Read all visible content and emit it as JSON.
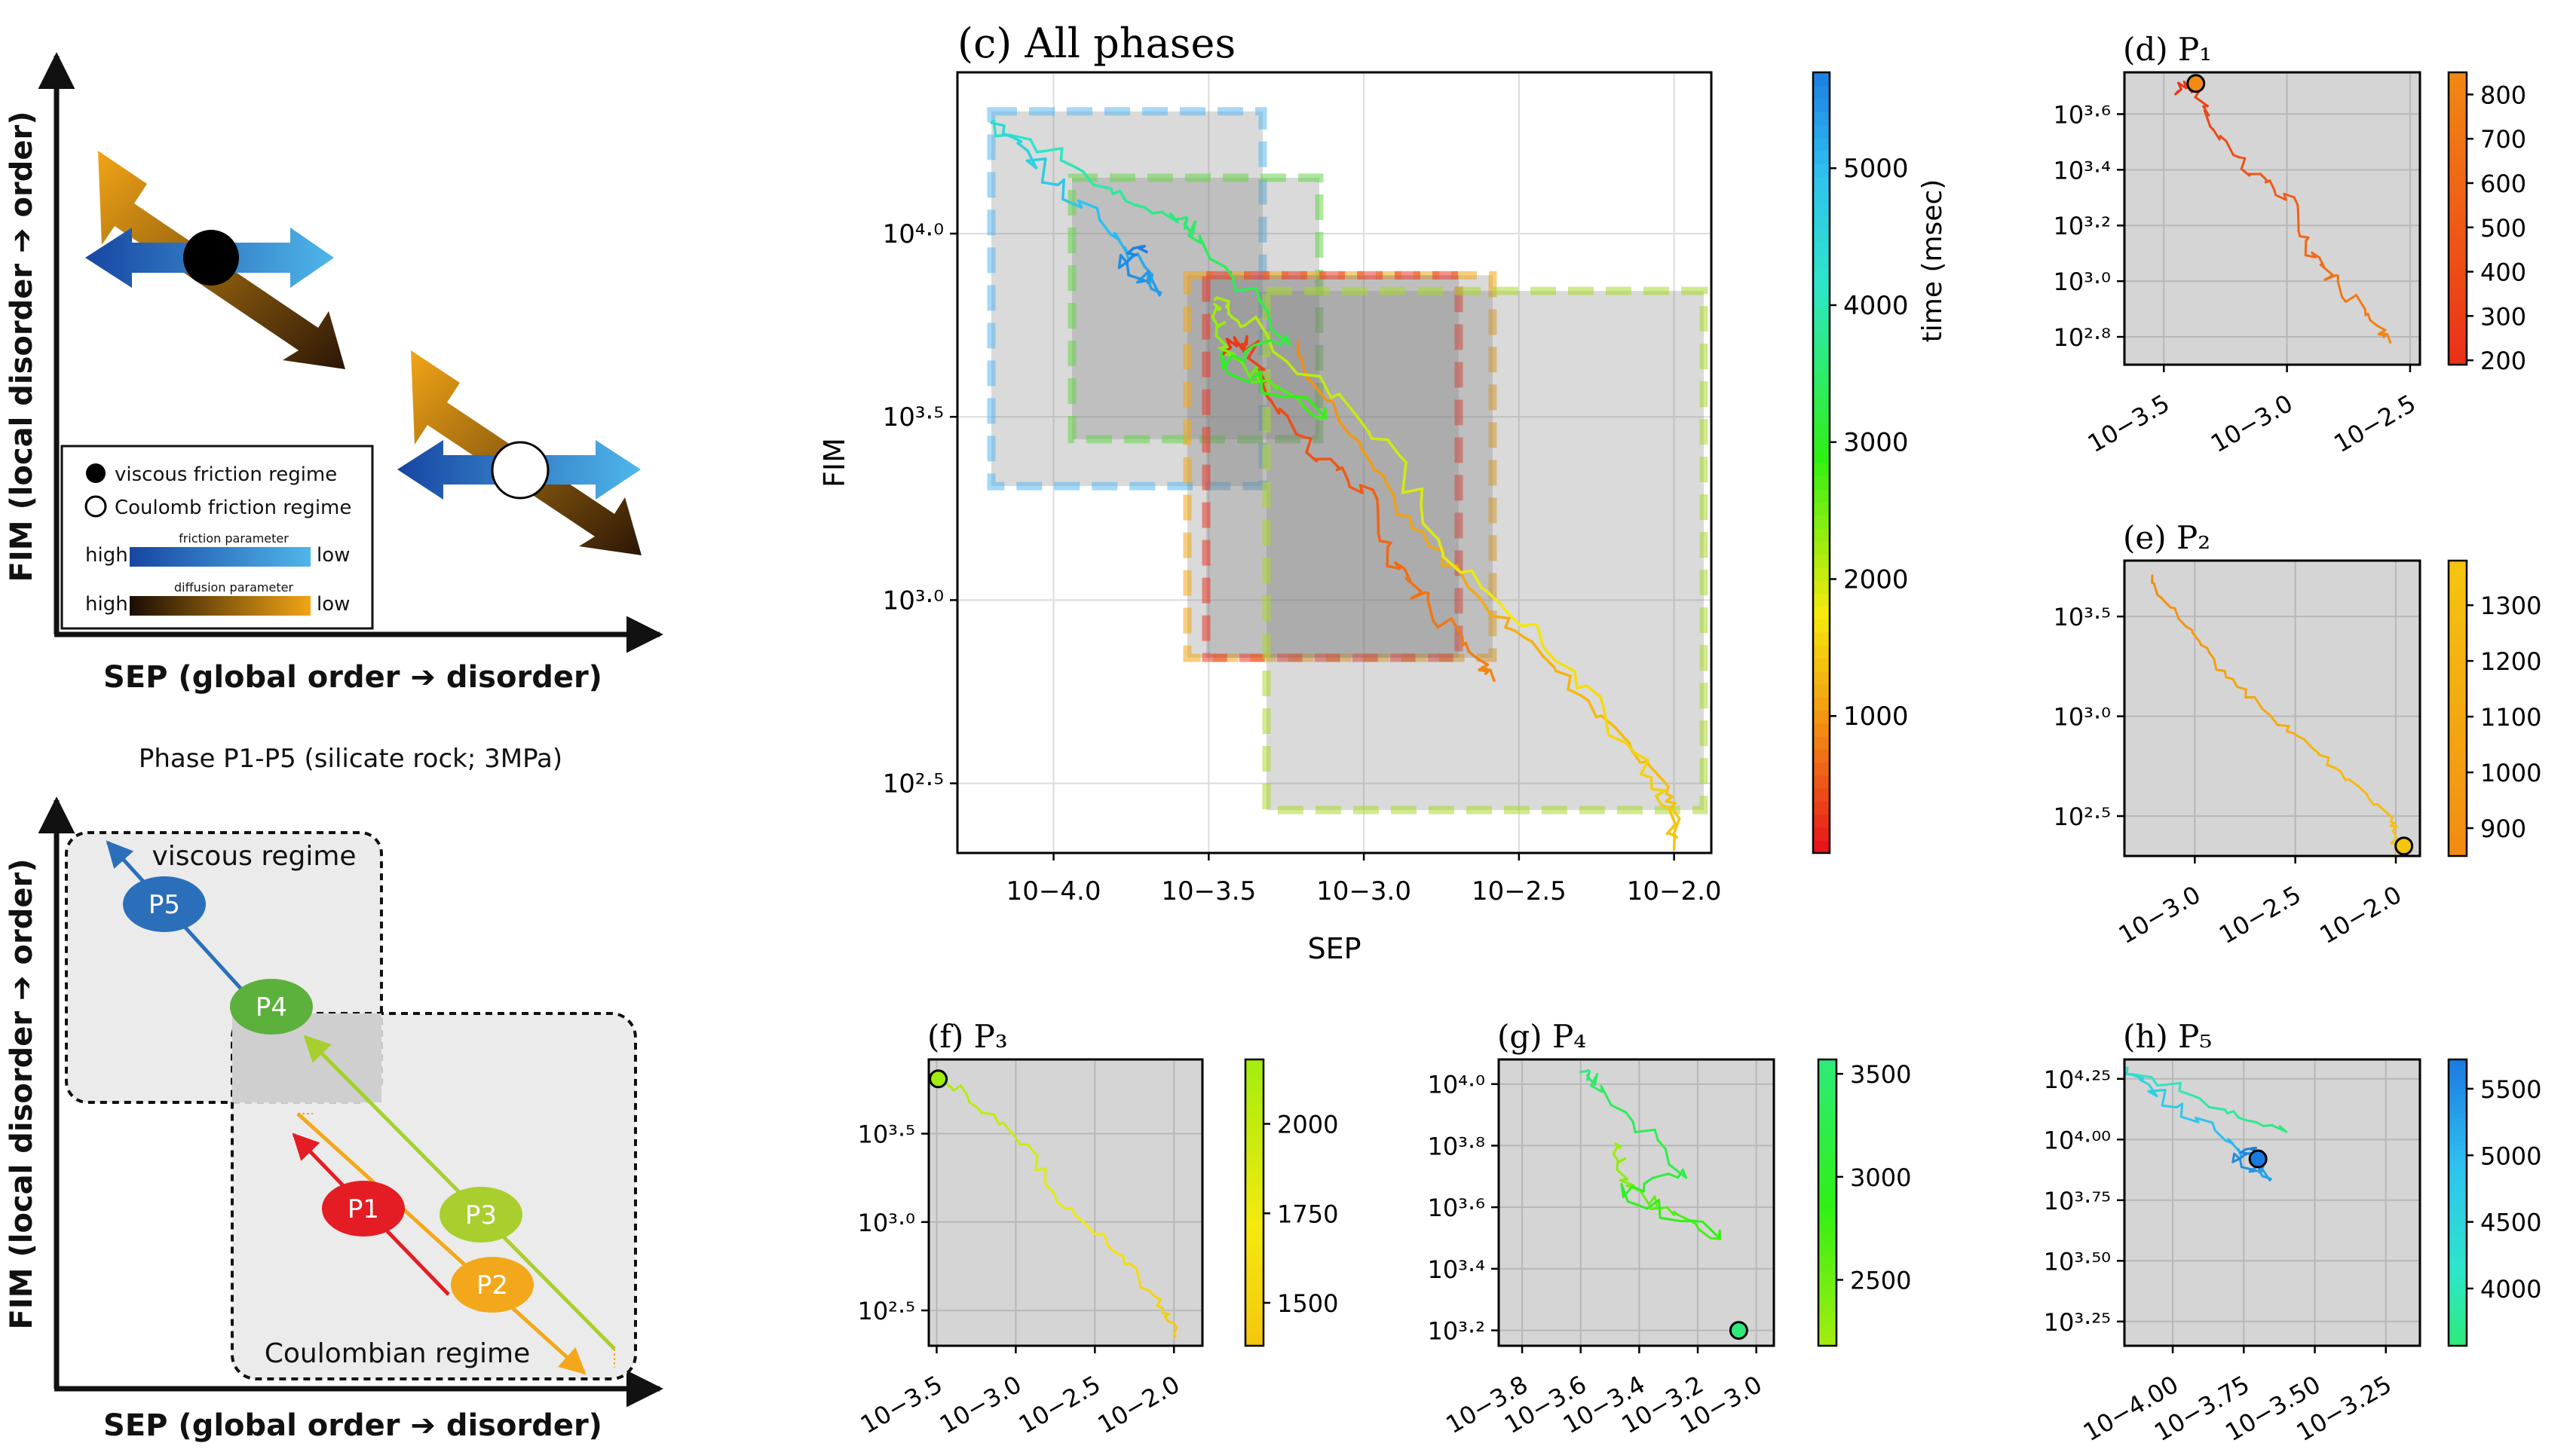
{
  "schematic": {
    "top": {
      "xlabel": "SEP (global order ➔ disorder)",
      "ylabel": "FIM (local disorder ➔ order)",
      "legend": {
        "viscous": "viscous friction regime",
        "coulomb": "Coulomb friction regime",
        "friction_high": "high",
        "friction_title": "friction parameter",
        "friction_low": "low",
        "diffusion_high": "high",
        "diffusion_title": "diffusion parameter",
        "diffusion_low": "low"
      },
      "colors": {
        "friction_dark": "#1746a2",
        "friction_light": "#4fb6ea",
        "diffusion_dark": "#2b1606",
        "diffusion_light": "#f2a516"
      }
    },
    "caption": "Phase P1-P5 (silicate rock; 3MPa)",
    "bottom": {
      "xlabel": "SEP (global order ➔ disorder)",
      "ylabel": "FIM (local disorder ➔ order)",
      "viscous_label": "viscous regime",
      "coulomb_label": "Coulombian regime",
      "phases": [
        {
          "label": "P1",
          "color": "#e31d23"
        },
        {
          "label": "P2",
          "color": "#f3a81b"
        },
        {
          "label": "P3",
          "color": "#a8cf2d"
        },
        {
          "label": "P4",
          "color": "#5cb03c"
        },
        {
          "label": "P5",
          "color": "#2b6fba"
        }
      ]
    }
  },
  "chart_data": [
    {
      "id": "c",
      "type": "line",
      "title": "(c) All phases",
      "xlabel": "SEP",
      "ylabel": "FIM",
      "log_scale": true,
      "xlim_exp": [
        -4.31,
        -1.88
      ],
      "ylim_exp": [
        2.31,
        4.44
      ],
      "xticks": [
        "10−4.0",
        "10−3.5",
        "10−3.0",
        "10−2.5",
        "10−2.0"
      ],
      "yticks": [
        "10²·⁵",
        "10³·⁰",
        "10³·⁵",
        "10⁴·⁰"
      ],
      "colorbar": {
        "label": "time (msec)",
        "ticks": [
          "1000",
          "2000",
          "3000",
          "4000",
          "5000"
        ],
        "range": [
          0,
          5700
        ]
      },
      "grid": true
    },
    {
      "id": "d",
      "type": "line",
      "title": "(d) P₁",
      "colorbar": {
        "ticks": [
          "200",
          "300",
          "400",
          "500",
          "600",
          "700",
          "800"
        ],
        "range": [
          190,
          850
        ]
      },
      "xticks": [
        "10−3.5",
        "10−3.0",
        "10−2.5"
      ],
      "yticks": [
        "10²·⁸",
        "10³·⁰",
        "10³·²",
        "10³·⁴",
        "10³·⁶"
      ],
      "grid": true
    },
    {
      "id": "e",
      "type": "line",
      "title": "(e) P₂",
      "colorbar": {
        "ticks": [
          "900",
          "1000",
          "1100",
          "1200",
          "1300"
        ],
        "range": [
          850,
          1380
        ]
      },
      "xticks": [
        "10−3.0",
        "10−2.5",
        "10−2.0"
      ],
      "yticks": [
        "10²·⁵",
        "10³·⁰",
        "10³·⁵"
      ],
      "grid": true
    },
    {
      "id": "f",
      "type": "line",
      "title": "(f) P₃",
      "colorbar": {
        "ticks": [
          "1500",
          "1750",
          "2000"
        ],
        "range": [
          1380,
          2180
        ]
      },
      "xticks": [
        "10−3.5",
        "10−3.0",
        "10−2.5",
        "10−2.0"
      ],
      "yticks": [
        "10²·⁵",
        "10³·⁰",
        "10³·⁵"
      ],
      "grid": true
    },
    {
      "id": "g",
      "type": "line",
      "title": "(g) P₄",
      "colorbar": {
        "ticks": [
          "2500",
          "3000",
          "3500"
        ],
        "range": [
          2180,
          3570
        ]
      },
      "xticks": [
        "10−3.8",
        "10−3.6",
        "10−3.4",
        "10−3.2",
        "10−3.0"
      ],
      "yticks": [
        "10³·²",
        "10³·⁴",
        "10³·⁶",
        "10³·⁸",
        "10⁴·⁰"
      ],
      "grid": true
    },
    {
      "id": "h",
      "type": "line",
      "title": "(h) P₅",
      "colorbar": {
        "ticks": [
          "4000",
          "4500",
          "5000",
          "5500"
        ],
        "range": [
          3570,
          5720
        ]
      },
      "xticks": [
        "10−4.00",
        "10−3.75",
        "10−3.50",
        "10−3.25"
      ],
      "yticks": [
        "10³·²⁵",
        "10³·⁵⁰",
        "10³·⁷⁵",
        "10⁴·⁰⁰",
        "10⁴·²⁵"
      ],
      "grid": true
    }
  ]
}
